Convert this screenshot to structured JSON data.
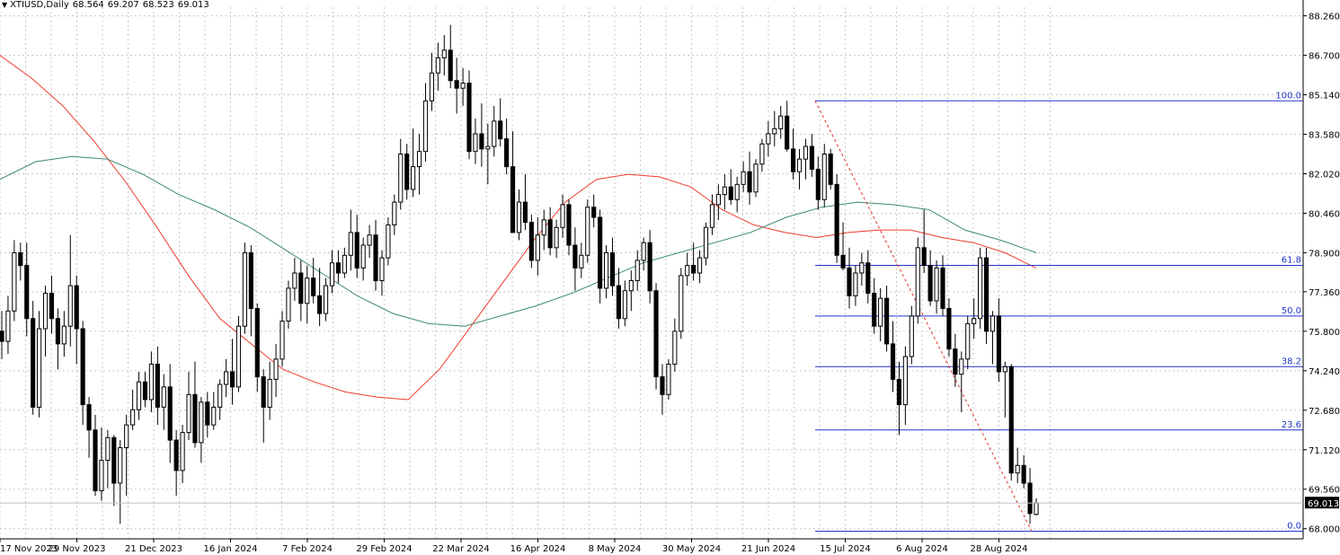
{
  "header": {
    "symbol": "XTIUSD,Daily",
    "open": "68.564",
    "high": "69.207",
    "low": "68.523",
    "close": "69.013"
  },
  "chart_data": {
    "type": "candlestick",
    "symbol": "XTIUSD",
    "timeframe": "Daily",
    "y_axis": {
      "ticks": [
        "88.260",
        "86.700",
        "85.140",
        "83.580",
        "82.020",
        "80.460",
        "78.900",
        "77.360",
        "75.800",
        "74.240",
        "72.680",
        "71.120",
        "69.560",
        "68.000"
      ],
      "range": [
        67.6,
        88.6
      ]
    },
    "x_axis": {
      "ticks": [
        "17 Nov 2023",
        "29 Nov 2023",
        "21 Dec 2023",
        "16 Jan 2024",
        "7 Feb 2024",
        "29 Feb 2024",
        "22 Mar 2024",
        "16 Apr 2024",
        "8 May 2024",
        "30 May 2024",
        "21 Jun 2024",
        "15 Jul 2024",
        "6 Aug 2024",
        "28 Aug 2024"
      ]
    },
    "current_price": "69.013",
    "ohlc": [
      [
        75.8,
        76.6,
        74.7,
        75.4
      ],
      [
        75.4,
        77.2,
        74.9,
        76.6
      ],
      [
        76.6,
        79.4,
        76.2,
        78.9
      ],
      [
        78.9,
        79.3,
        77.8,
        78.4
      ],
      [
        78.4,
        79.3,
        75.6,
        76.3
      ],
      [
        76.3,
        77.0,
        72.5,
        72.8
      ],
      [
        72.8,
        76.6,
        72.4,
        75.9
      ],
      [
        75.9,
        77.6,
        74.8,
        77.3
      ],
      [
        77.3,
        78.0,
        75.7,
        76.3
      ],
      [
        76.3,
        76.7,
        74.3,
        75.3
      ],
      [
        75.3,
        76.6,
        74.8,
        76.0
      ],
      [
        76.0,
        79.6,
        75.2,
        77.6
      ],
      [
        77.6,
        78.0,
        74.5,
        75.9
      ],
      [
        75.9,
        76.2,
        72.1,
        72.9
      ],
      [
        72.9,
        73.2,
        70.8,
        71.9
      ],
      [
        71.9,
        72.5,
        69.3,
        69.5
      ],
      [
        69.5,
        72.0,
        69.1,
        70.7
      ],
      [
        70.7,
        71.9,
        69.6,
        71.6
      ],
      [
        71.6,
        71.7,
        68.9,
        69.8
      ],
      [
        69.8,
        71.5,
        68.2,
        71.2
      ],
      [
        71.2,
        72.5,
        69.3,
        72.1
      ],
      [
        72.1,
        73.5,
        71.9,
        72.7
      ],
      [
        72.7,
        74.2,
        72.3,
        73.8
      ],
      [
        73.8,
        74.2,
        72.8,
        73.1
      ],
      [
        73.1,
        75.0,
        72.6,
        74.5
      ],
      [
        74.5,
        75.2,
        72.1,
        72.8
      ],
      [
        72.8,
        74.1,
        71.9,
        73.6
      ],
      [
        73.6,
        74.5,
        70.6,
        71.5
      ],
      [
        71.5,
        71.9,
        69.3,
        70.3
      ],
      [
        70.3,
        72.1,
        69.8,
        71.8
      ],
      [
        71.8,
        74.2,
        71.5,
        73.3
      ],
      [
        73.3,
        74.6,
        71.2,
        71.4
      ],
      [
        71.4,
        73.2,
        70.6,
        73.0
      ],
      [
        73.0,
        73.4,
        71.6,
        72.1
      ],
      [
        72.1,
        73.4,
        71.9,
        72.8
      ],
      [
        72.8,
        73.9,
        72.3,
        73.7
      ],
      [
        73.7,
        74.7,
        73.2,
        74.2
      ],
      [
        74.2,
        75.5,
        72.9,
        73.6
      ],
      [
        73.6,
        76.4,
        73.4,
        76.0
      ],
      [
        76.0,
        79.3,
        75.7,
        78.9
      ],
      [
        78.9,
        79.2,
        75.6,
        76.7
      ],
      [
        76.7,
        76.9,
        73.4,
        74.0
      ],
      [
        74.0,
        74.3,
        71.4,
        72.8
      ],
      [
        72.8,
        74.6,
        72.3,
        73.9
      ],
      [
        73.9,
        75.3,
        73.2,
        74.7
      ],
      [
        74.7,
        76.6,
        74.4,
        76.2
      ],
      [
        76.2,
        77.8,
        75.9,
        77.5
      ],
      [
        77.5,
        78.7,
        77.0,
        78.1
      ],
      [
        78.1,
        78.6,
        76.2,
        76.9
      ],
      [
        76.9,
        78.4,
        76.1,
        77.9
      ],
      [
        77.9,
        78.7,
        76.9,
        77.2
      ],
      [
        77.2,
        78.3,
        76.0,
        76.5
      ],
      [
        76.5,
        77.9,
        76.2,
        77.6
      ],
      [
        77.6,
        79.0,
        77.3,
        78.5
      ],
      [
        78.5,
        79.0,
        77.7,
        78.1
      ],
      [
        78.1,
        79.1,
        77.9,
        78.8
      ],
      [
        78.8,
        80.6,
        78.2,
        79.7
      ],
      [
        79.7,
        80.4,
        77.9,
        78.3
      ],
      [
        78.3,
        79.5,
        77.8,
        79.2
      ],
      [
        79.2,
        80.0,
        78.7,
        79.6
      ],
      [
        79.6,
        80.2,
        77.4,
        77.8
      ],
      [
        77.8,
        79.0,
        77.2,
        78.7
      ],
      [
        78.7,
        80.3,
        78.4,
        80.0
      ],
      [
        80.0,
        81.2,
        79.6,
        80.9
      ],
      [
        80.9,
        83.4,
        80.6,
        82.8
      ],
      [
        82.8,
        83.2,
        81.0,
        81.4
      ],
      [
        81.4,
        83.8,
        81.1,
        82.3
      ],
      [
        82.3,
        83.6,
        81.2,
        82.9
      ],
      [
        82.9,
        85.6,
        82.5,
        84.9
      ],
      [
        84.9,
        86.8,
        84.5,
        86.0
      ],
      [
        86.0,
        87.2,
        85.3,
        86.6
      ],
      [
        86.6,
        87.5,
        85.9,
        86.9
      ],
      [
        86.9,
        87.9,
        85.4,
        85.7
      ],
      [
        85.7,
        86.6,
        84.4,
        85.4
      ],
      [
        85.4,
        86.2,
        84.7,
        85.6
      ],
      [
        85.6,
        86.1,
        82.6,
        82.9
      ],
      [
        82.9,
        84.2,
        82.4,
        83.6
      ],
      [
        83.6,
        84.8,
        82.3,
        83.0
      ],
      [
        83.0,
        84.0,
        81.6,
        83.1
      ],
      [
        83.1,
        84.7,
        82.7,
        84.1
      ],
      [
        84.1,
        85.0,
        83.1,
        83.4
      ],
      [
        83.4,
        84.2,
        82.0,
        82.3
      ],
      [
        82.3,
        83.7,
        79.7,
        79.7
      ],
      [
        79.7,
        81.4,
        79.4,
        80.9
      ],
      [
        80.9,
        82.0,
        79.8,
        80.1
      ],
      [
        80.1,
        80.4,
        78.3,
        78.6
      ],
      [
        78.6,
        80.3,
        78.0,
        79.6
      ],
      [
        79.6,
        80.6,
        79.0,
        80.2
      ],
      [
        80.2,
        80.7,
        78.8,
        79.1
      ],
      [
        79.1,
        80.2,
        78.7,
        79.9
      ],
      [
        79.9,
        81.2,
        79.5,
        80.8
      ],
      [
        80.8,
        81.0,
        78.8,
        79.2
      ],
      [
        79.2,
        79.9,
        77.4,
        78.3
      ],
      [
        78.3,
        79.3,
        77.9,
        78.8
      ],
      [
        78.8,
        81.0,
        78.5,
        80.7
      ],
      [
        80.7,
        81.2,
        79.9,
        80.3
      ],
      [
        80.3,
        80.6,
        76.9,
        77.5
      ],
      [
        77.5,
        79.2,
        77.1,
        78.9
      ],
      [
        78.9,
        79.5,
        77.2,
        77.6
      ],
      [
        77.6,
        78.3,
        75.9,
        76.3
      ],
      [
        76.3,
        77.8,
        76.0,
        77.4
      ],
      [
        77.4,
        78.2,
        76.6,
        77.8
      ],
      [
        77.8,
        79.0,
        77.4,
        78.6
      ],
      [
        78.6,
        79.5,
        78.2,
        79.3
      ],
      [
        79.3,
        79.8,
        76.9,
        77.4
      ],
      [
        77.4,
        77.7,
        73.5,
        74.0
      ],
      [
        74.0,
        74.5,
        72.5,
        73.3
      ],
      [
        73.3,
        74.7,
        73.1,
        74.5
      ],
      [
        74.5,
        76.3,
        74.2,
        75.8
      ],
      [
        75.8,
        78.3,
        75.5,
        78.0
      ],
      [
        78.0,
        78.9,
        77.6,
        78.4
      ],
      [
        78.4,
        79.3,
        77.8,
        78.1
      ],
      [
        78.1,
        79.0,
        77.7,
        78.7
      ],
      [
        78.7,
        80.1,
        78.4,
        79.9
      ],
      [
        79.9,
        81.2,
        79.6,
        80.8
      ],
      [
        80.8,
        81.6,
        80.2,
        81.2
      ],
      [
        81.2,
        82.0,
        80.6,
        81.5
      ],
      [
        81.5,
        82.2,
        80.8,
        81.0
      ],
      [
        81.0,
        81.9,
        80.5,
        81.6
      ],
      [
        81.6,
        82.5,
        81.3,
        82.1
      ],
      [
        82.1,
        82.9,
        80.8,
        81.3
      ],
      [
        81.3,
        82.6,
        81.1,
        82.4
      ],
      [
        82.4,
        83.4,
        82.1,
        83.2
      ],
      [
        83.2,
        84.1,
        82.7,
        83.6
      ],
      [
        83.6,
        84.5,
        83.1,
        83.8
      ],
      [
        83.8,
        84.7,
        83.4,
        84.3
      ],
      [
        84.3,
        84.9,
        82.9,
        83.0
      ],
      [
        83.0,
        83.8,
        81.8,
        82.1
      ],
      [
        82.1,
        83.0,
        81.4,
        82.6
      ],
      [
        82.6,
        83.4,
        81.8,
        83.1
      ],
      [
        83.1,
        83.6,
        81.9,
        82.2
      ],
      [
        82.2,
        82.7,
        80.6,
        81.0
      ],
      [
        81.0,
        83.2,
        80.7,
        82.8
      ],
      [
        82.8,
        83.0,
        81.4,
        81.6
      ],
      [
        81.6,
        82.0,
        78.5,
        78.8
      ],
      [
        78.8,
        80.1,
        78.2,
        78.3
      ],
      [
        78.3,
        79.1,
        76.7,
        77.2
      ],
      [
        77.2,
        78.4,
        76.8,
        78.1
      ],
      [
        78.1,
        78.9,
        77.6,
        78.5
      ],
      [
        78.5,
        79.0,
        76.9,
        77.3
      ],
      [
        77.3,
        77.9,
        75.7,
        76.0
      ],
      [
        76.0,
        77.5,
        75.4,
        77.1
      ],
      [
        77.1,
        77.6,
        75.0,
        75.3
      ],
      [
        75.3,
        76.2,
        73.4,
        73.9
      ],
      [
        73.9,
        74.6,
        71.7,
        72.9
      ],
      [
        72.9,
        75.2,
        72.1,
        74.8
      ],
      [
        74.8,
        76.8,
        74.5,
        76.4
      ],
      [
        76.4,
        79.5,
        76.1,
        79.1
      ],
      [
        79.1,
        80.6,
        78.1,
        78.4
      ],
      [
        78.4,
        79.0,
        76.8,
        77.0
      ],
      [
        77.0,
        78.6,
        76.5,
        78.3
      ],
      [
        78.3,
        78.8,
        76.4,
        76.7
      ],
      [
        76.7,
        77.1,
        74.8,
        75.1
      ],
      [
        75.1,
        75.7,
        73.6,
        74.1
      ],
      [
        74.1,
        75.0,
        72.6,
        74.7
      ],
      [
        74.7,
        76.4,
        74.3,
        76.1
      ],
      [
        76.1,
        77.1,
        75.5,
        76.3
      ],
      [
        76.3,
        79.1,
        75.9,
        78.7
      ],
      [
        78.7,
        79.1,
        75.3,
        75.8
      ],
      [
        75.8,
        76.6,
        74.5,
        76.4
      ],
      [
        76.4,
        77.1,
        73.8,
        74.2
      ],
      [
        74.2,
        74.6,
        72.4,
        74.4
      ],
      [
        74.4,
        74.5,
        69.9,
        70.2
      ],
      [
        70.2,
        71.2,
        69.8,
        70.5
      ],
      [
        70.5,
        70.9,
        69.6,
        69.8
      ],
      [
        69.8,
        70.4,
        68.2,
        68.6
      ],
      [
        68.564,
        69.207,
        68.523,
        69.013
      ]
    ],
    "moving_averages": [
      {
        "color": "#f03b2c",
        "values": [
          86.7,
          85.8,
          84.7,
          83.3,
          81.7,
          79.9,
          78.0,
          76.3,
          75.3,
          74.3,
          73.8,
          73.4,
          73.2,
          73.1,
          74.3,
          76.0,
          77.7,
          79.4,
          80.9,
          81.8,
          82.0,
          81.9,
          81.5,
          80.6,
          80.0,
          79.7,
          79.5,
          79.7,
          79.8,
          79.8,
          79.5,
          79.3,
          78.9,
          78.3
        ]
      },
      {
        "color": "#3d8a6c",
        "values": [
          81.8,
          82.5,
          82.7,
          82.6,
          82.0,
          81.2,
          80.6,
          79.9,
          79.0,
          78.1,
          77.2,
          76.5,
          76.1,
          76.0,
          76.4,
          76.8,
          77.3,
          77.9,
          78.5,
          78.9,
          79.3,
          79.7,
          80.3,
          80.7,
          80.9,
          80.8,
          80.6,
          79.8,
          79.4,
          78.9
        ]
      }
    ],
    "fibonacci": {
      "high": 84.9,
      "low": 67.9,
      "levels": [
        {
          "label": "100.0",
          "value": 84.9
        },
        {
          "label": "61.8",
          "value": 78.4
        },
        {
          "label": "50.0",
          "value": 76.4
        },
        {
          "label": "38.2",
          "value": 74.4
        },
        {
          "label": "23.6",
          "value": 71.9
        },
        {
          "label": "0.0",
          "value": 67.9
        }
      ]
    },
    "grid": true,
    "colors": {
      "bull_body": "#ffffff",
      "bear_body": "#000000",
      "grid": "#c8c8c8",
      "fib_line": "#2234cc",
      "fib_label": "#2234cc",
      "trend_line": "#e0302a",
      "price_tag_bg": "#000000",
      "price_tag_fg": "#ffffff"
    }
  }
}
